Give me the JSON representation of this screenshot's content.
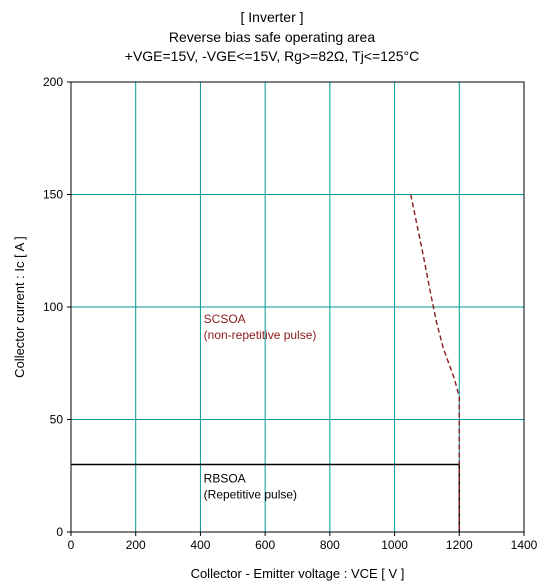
{
  "chart_data": {
    "type": "line",
    "title": "[ Inverter ]",
    "subtitle": "Reverse bias safe operating area",
    "conditions": "+VGE=15V, -VGE<=15V, Rg>=82Ω, Tj<=125°C",
    "xlabel": "Collector - Emitter voltage  :  VCE  [ V ]",
    "ylabel": "Collector current  : Ic  [ A ]",
    "xlim": [
      0,
      1400
    ],
    "ylim": [
      0,
      200
    ],
    "xticks": [
      "0",
      "200",
      "400",
      "600",
      "800",
      "1000",
      "1200",
      "1400"
    ],
    "yticks": [
      "0",
      "50",
      "100",
      "150",
      "200"
    ],
    "grid": true,
    "colors": {
      "grid": "#009999",
      "rbsoa": "#000000",
      "scsoa": "#8b1a1a"
    },
    "series": [
      {
        "name": "RBSOA",
        "style": "solid",
        "x": [
          0,
          1200,
          1200
        ],
        "y": [
          30,
          30,
          0
        ]
      },
      {
        "name": "SCSOA",
        "style": "dashed",
        "x": [
          1050,
          1070,
          1090,
          1110,
          1130,
          1150,
          1170,
          1185,
          1200,
          1200
        ],
        "y": [
          150,
          136,
          122,
          107,
          93,
          82,
          74,
          68,
          60,
          0
        ]
      }
    ],
    "annotations": [
      {
        "lines": [
          "SCSOA",
          "(non-repetitive pulse)"
        ],
        "x": 410,
        "y": 93,
        "color": "#8b1a1a"
      },
      {
        "lines": [
          "RBSOA",
          "(Repetitive pulse)"
        ],
        "x": 410,
        "y": 22,
        "color": "#000000"
      }
    ]
  }
}
